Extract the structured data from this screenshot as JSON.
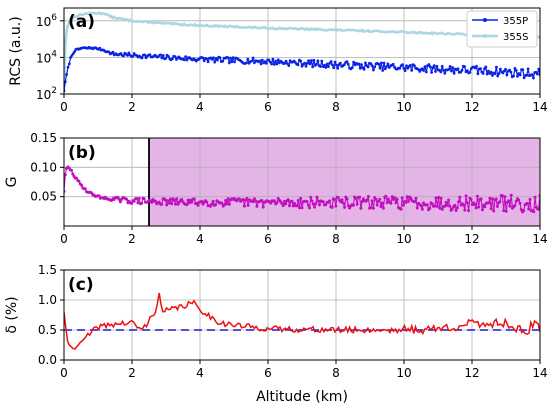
{
  "colors": {
    "p355": "#0a22e6",
    "s355": "#a9d8e4",
    "g_series": "#c010c0",
    "g_band": "#e4b4e6",
    "delta": "#ee1010",
    "delta_ref": "#1a1ad8",
    "grid": "#b0b0b0"
  },
  "xlabel": "Altitude (km)",
  "x_ticks": [
    "0",
    "2",
    "4",
    "6",
    "8",
    "10",
    "12",
    "14"
  ],
  "chart_data": [
    {
      "type": "line",
      "panel_label": "(a)",
      "ylabel": "RCS (a.u.)",
      "yscale": "log",
      "xlim": [
        0,
        14
      ],
      "ylim_log10": [
        2,
        6.7
      ],
      "y_tick_labels": [
        {
          "base": "10",
          "exp": "6",
          "log": 6
        },
        {
          "base": "10",
          "exp": "4",
          "log": 4
        },
        {
          "base": "10",
          "exp": "2",
          "log": 2
        }
      ],
      "grid": true,
      "legend_position": "upper-right",
      "series": [
        {
          "name": "355P",
          "noise_amplitude_log10": 0.18,
          "points_log10": [
            [
              0.0,
              2.2
            ],
            [
              0.1,
              3.3
            ],
            [
              0.2,
              4.0
            ],
            [
              0.3,
              4.35
            ],
            [
              0.5,
              4.5
            ],
            [
              0.8,
              4.52
            ],
            [
              1.0,
              4.48
            ],
            [
              1.2,
              4.38
            ],
            [
              1.4,
              4.2
            ],
            [
              2.0,
              4.12
            ],
            [
              3.0,
              4.0
            ],
            [
              4.0,
              3.9
            ],
            [
              6.0,
              3.78
            ],
            [
              8.0,
              3.6
            ],
            [
              10.0,
              3.45
            ],
            [
              12.0,
              3.3
            ],
            [
              14.0,
              3.1
            ]
          ]
        },
        {
          "name": "355S",
          "noise_amplitude_log10": 0.04,
          "points_log10": [
            [
              0.0,
              2.5
            ],
            [
              0.05,
              5.2
            ],
            [
              0.1,
              5.7
            ],
            [
              0.2,
              6.1
            ],
            [
              0.4,
              6.3
            ],
            [
              0.7,
              6.4
            ],
            [
              1.0,
              6.42
            ],
            [
              1.2,
              6.4
            ],
            [
              1.4,
              6.2
            ],
            [
              2.0,
              6.0
            ],
            [
              3.0,
              5.85
            ],
            [
              4.0,
              5.75
            ],
            [
              6.0,
              5.6
            ],
            [
              8.0,
              5.5
            ],
            [
              10.0,
              5.38
            ],
            [
              12.0,
              5.25
            ],
            [
              14.0,
              5.1
            ]
          ]
        }
      ]
    },
    {
      "type": "line",
      "panel_label": "(b)",
      "ylabel": "G",
      "xlim": [
        0,
        14
      ],
      "ylim": [
        0.0,
        0.15
      ],
      "y_tick_labels": [
        "0.15",
        "0.10",
        "0.05"
      ],
      "grid": true,
      "highlighted_range_x": [
        2.5,
        14
      ],
      "series": [
        {
          "noise_amplitude": 0.013,
          "points": [
            [
              0.0,
              0.06
            ],
            [
              0.05,
              0.095
            ],
            [
              0.1,
              0.1
            ],
            [
              0.2,
              0.096
            ],
            [
              0.3,
              0.085
            ],
            [
              0.5,
              0.07
            ],
            [
              0.7,
              0.058
            ],
            [
              1.0,
              0.05
            ],
            [
              1.3,
              0.046
            ],
            [
              2.0,
              0.043
            ],
            [
              3.0,
              0.041
            ],
            [
              6.0,
              0.04
            ],
            [
              8.0,
              0.04
            ],
            [
              10.0,
              0.04
            ],
            [
              14.0,
              0.038
            ]
          ]
        }
      ]
    },
    {
      "type": "line",
      "panel_label": "(c)",
      "ylabel": "δ (%)",
      "xlim": [
        0,
        14
      ],
      "ylim": [
        0.0,
        1.5
      ],
      "y_tick_labels": [
        "1.5",
        "1.0",
        "0.5",
        "0.0"
      ],
      "grid": true,
      "reference_y": 0.5,
      "series": [
        {
          "noise_amplitude": 0.05,
          "points": [
            [
              0.0,
              0.8
            ],
            [
              0.05,
              0.55
            ],
            [
              0.1,
              0.3
            ],
            [
              0.2,
              0.22
            ],
            [
              0.3,
              0.18
            ],
            [
              0.5,
              0.3
            ],
            [
              0.8,
              0.45
            ],
            [
              1.0,
              0.55
            ],
            [
              1.5,
              0.6
            ],
            [
              2.0,
              0.62
            ],
            [
              2.3,
              0.5
            ],
            [
              2.5,
              0.65
            ],
            [
              2.7,
              0.85
            ],
            [
              2.8,
              1.07
            ],
            [
              2.9,
              0.8
            ],
            [
              3.2,
              0.85
            ],
            [
              3.5,
              0.9
            ],
            [
              3.8,
              0.95
            ],
            [
              4.0,
              0.85
            ],
            [
              4.3,
              0.72
            ],
            [
              4.6,
              0.62
            ],
            [
              5.0,
              0.58
            ],
            [
              5.5,
              0.55
            ],
            [
              6.0,
              0.52
            ],
            [
              8.0,
              0.5
            ],
            [
              10.0,
              0.5
            ],
            [
              11.0,
              0.52
            ],
            [
              12.0,
              0.6
            ],
            [
              13.0,
              0.62
            ],
            [
              13.6,
              0.45
            ],
            [
              13.8,
              0.6
            ],
            [
              14.0,
              0.5
            ]
          ]
        }
      ]
    }
  ]
}
